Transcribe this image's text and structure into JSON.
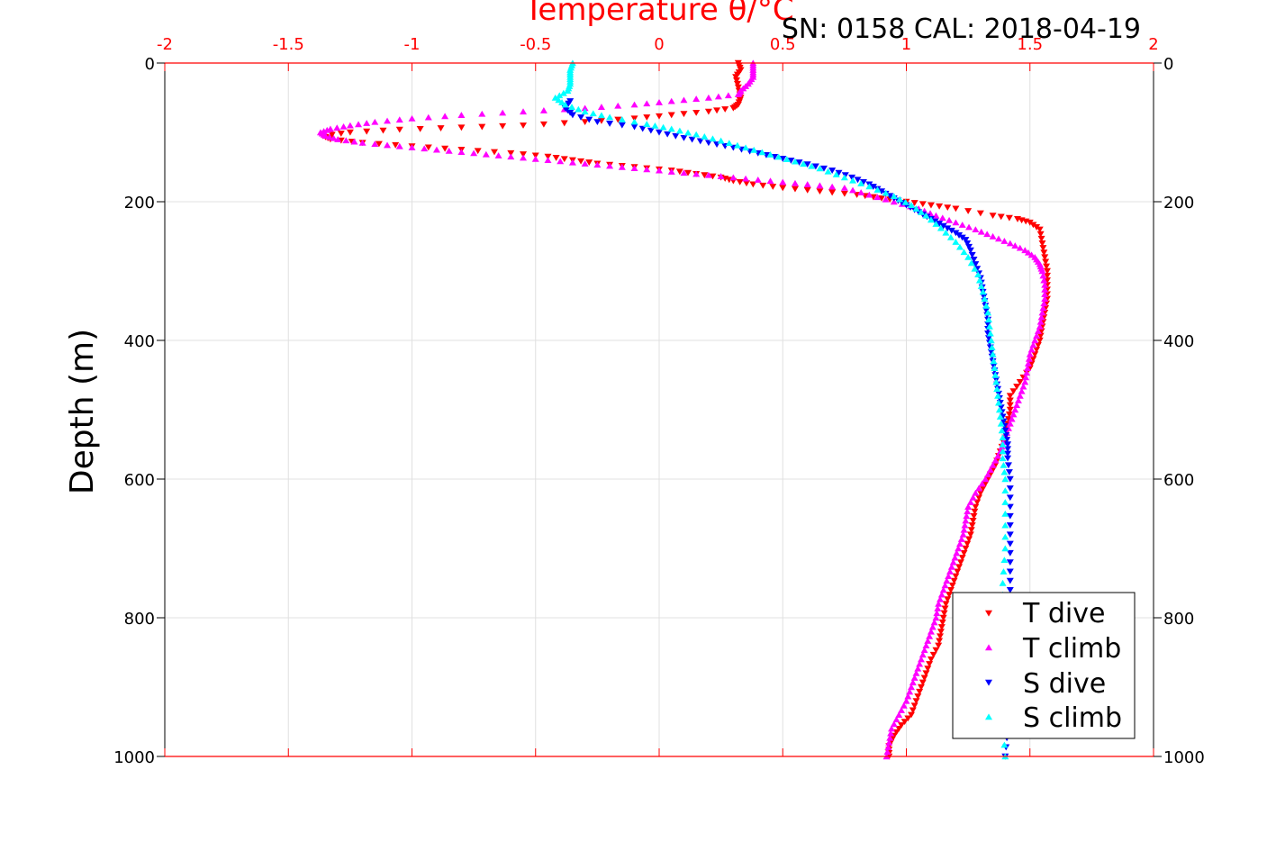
{
  "colors": {
    "t_dive": "#ff0000",
    "t_climb": "#ff00ff",
    "s_dive": "#0000ff",
    "s_climb": "#00ffff",
    "axis_top": "#ff0000",
    "grid": "#e0e0e0"
  },
  "chart_data": {
    "type": "scatter",
    "title": "SN: 0158  CAL: 2018-04-19",
    "xlabel": "Temperature θ/°C",
    "ylabel": "Depth (m)",
    "xlim": [
      -2,
      2
    ],
    "ylim": [
      0,
      1000
    ],
    "y_inverted": true,
    "grid": true,
    "legend_position": "bottom-right",
    "x_ticks": [
      "-2",
      "-1.5",
      "-1",
      "-0.5",
      "0",
      "0.5",
      "1",
      "1.5",
      "2"
    ],
    "y_ticks": [
      "0",
      "200",
      "400",
      "600",
      "800",
      "1000"
    ],
    "series": [
      {
        "name": "T dive",
        "marker": "triangle-down",
        "points": [
          [
            0.32,
            0
          ],
          [
            0.33,
            10
          ],
          [
            0.31,
            20
          ],
          [
            0.32,
            35
          ],
          [
            0.33,
            50
          ],
          [
            0.32,
            60
          ],
          [
            0.3,
            65
          ],
          [
            0.2,
            70
          ],
          [
            0.05,
            75
          ],
          [
            -0.1,
            80
          ],
          [
            -0.3,
            85
          ],
          [
            -0.55,
            90
          ],
          [
            -0.8,
            93
          ],
          [
            -1.05,
            96
          ],
          [
            -1.25,
            100
          ],
          [
            -1.36,
            105
          ],
          [
            -1.33,
            110
          ],
          [
            -1.2,
            115
          ],
          [
            -1.0,
            120
          ],
          [
            -0.8,
            125
          ],
          [
            -0.6,
            130
          ],
          [
            -0.45,
            135
          ],
          [
            -0.35,
            140
          ],
          [
            -0.25,
            145
          ],
          [
            -0.1,
            150
          ],
          [
            0.05,
            155
          ],
          [
            0.15,
            160
          ],
          [
            0.25,
            165
          ],
          [
            0.3,
            170
          ],
          [
            0.38,
            175
          ],
          [
            0.5,
            180
          ],
          [
            0.65,
            185
          ],
          [
            0.8,
            190
          ],
          [
            0.9,
            195
          ],
          [
            1.0,
            200
          ],
          [
            1.1,
            205
          ],
          [
            1.2,
            210
          ],
          [
            1.35,
            220
          ],
          [
            1.45,
            225
          ],
          [
            1.5,
            230
          ],
          [
            1.54,
            240
          ],
          [
            1.55,
            260
          ],
          [
            1.56,
            280
          ],
          [
            1.57,
            300
          ],
          [
            1.57,
            320
          ],
          [
            1.57,
            340
          ],
          [
            1.56,
            360
          ],
          [
            1.55,
            380
          ],
          [
            1.54,
            400
          ],
          [
            1.52,
            420
          ],
          [
            1.5,
            440
          ],
          [
            1.46,
            460
          ],
          [
            1.42,
            480
          ],
          [
            1.42,
            500
          ],
          [
            1.41,
            520
          ],
          [
            1.4,
            540
          ],
          [
            1.38,
            560
          ],
          [
            1.36,
            580
          ],
          [
            1.33,
            600
          ],
          [
            1.3,
            620
          ],
          [
            1.28,
            640
          ],
          [
            1.27,
            660
          ],
          [
            1.26,
            680
          ],
          [
            1.24,
            700
          ],
          [
            1.22,
            720
          ],
          [
            1.2,
            740
          ],
          [
            1.18,
            760
          ],
          [
            1.16,
            780
          ],
          [
            1.15,
            800
          ],
          [
            1.14,
            820
          ],
          [
            1.13,
            840
          ],
          [
            1.1,
            860
          ],
          [
            1.08,
            880
          ],
          [
            1.06,
            900
          ],
          [
            1.04,
            920
          ],
          [
            1.02,
            940
          ],
          [
            0.98,
            955
          ],
          [
            0.95,
            970
          ],
          [
            0.93,
            985
          ],
          [
            0.93,
            1000
          ]
        ]
      },
      {
        "name": "T climb",
        "marker": "triangle-up",
        "points": [
          [
            0.38,
            0
          ],
          [
            0.38,
            10
          ],
          [
            0.38,
            20
          ],
          [
            0.36,
            30
          ],
          [
            0.33,
            40
          ],
          [
            0.32,
            45
          ],
          [
            0.2,
            50
          ],
          [
            0.05,
            55
          ],
          [
            -0.1,
            60
          ],
          [
            -0.3,
            65
          ],
          [
            -0.55,
            70
          ],
          [
            -0.8,
            75
          ],
          [
            -1.0,
            80
          ],
          [
            -1.15,
            85
          ],
          [
            -1.25,
            90
          ],
          [
            -1.33,
            95
          ],
          [
            -1.37,
            100
          ],
          [
            -1.35,
            105
          ],
          [
            -1.3,
            110
          ],
          [
            -1.2,
            115
          ],
          [
            -1.05,
            120
          ],
          [
            -0.9,
            125
          ],
          [
            -0.75,
            130
          ],
          [
            -0.6,
            135
          ],
          [
            -0.45,
            140
          ],
          [
            -0.3,
            145
          ],
          [
            -0.15,
            150
          ],
          [
            0.0,
            155
          ],
          [
            0.15,
            160
          ],
          [
            0.3,
            165
          ],
          [
            0.45,
            170
          ],
          [
            0.6,
            175
          ],
          [
            0.75,
            180
          ],
          [
            0.85,
            190
          ],
          [
            0.95,
            200
          ],
          [
            1.05,
            210
          ],
          [
            1.12,
            220
          ],
          [
            1.2,
            230
          ],
          [
            1.28,
            240
          ],
          [
            1.35,
            250
          ],
          [
            1.42,
            260
          ],
          [
            1.48,
            270
          ],
          [
            1.52,
            280
          ],
          [
            1.54,
            290
          ],
          [
            1.55,
            300
          ],
          [
            1.56,
            320
          ],
          [
            1.56,
            340
          ],
          [
            1.55,
            360
          ],
          [
            1.54,
            380
          ],
          [
            1.52,
            400
          ],
          [
            1.5,
            420
          ],
          [
            1.49,
            440
          ],
          [
            1.48,
            460
          ],
          [
            1.46,
            480
          ],
          [
            1.44,
            500
          ],
          [
            1.42,
            520
          ],
          [
            1.4,
            540
          ],
          [
            1.38,
            560
          ],
          [
            1.35,
            580
          ],
          [
            1.32,
            600
          ],
          [
            1.28,
            620
          ],
          [
            1.25,
            640
          ],
          [
            1.24,
            660
          ],
          [
            1.23,
            680
          ],
          [
            1.21,
            700
          ],
          [
            1.19,
            720
          ],
          [
            1.17,
            740
          ],
          [
            1.15,
            760
          ],
          [
            1.13,
            780
          ],
          [
            1.12,
            800
          ],
          [
            1.1,
            820
          ],
          [
            1.08,
            840
          ],
          [
            1.06,
            860
          ],
          [
            1.04,
            880
          ],
          [
            1.02,
            900
          ],
          [
            1.0,
            920
          ],
          [
            0.97,
            940
          ],
          [
            0.94,
            960
          ],
          [
            0.93,
            980
          ],
          [
            0.92,
            1000
          ]
        ]
      },
      {
        "name": "S dive",
        "marker": "triangle-down",
        "points": [
          [
            -0.36,
            55
          ],
          [
            -0.38,
            65
          ],
          [
            -0.35,
            75
          ],
          [
            -0.25,
            85
          ],
          [
            -0.1,
            92
          ],
          [
            0.0,
            100
          ],
          [
            0.1,
            108
          ],
          [
            0.2,
            115
          ],
          [
            0.3,
            122
          ],
          [
            0.4,
            130
          ],
          [
            0.5,
            138
          ],
          [
            0.6,
            146
          ],
          [
            0.7,
            155
          ],
          [
            0.78,
            165
          ],
          [
            0.85,
            175
          ],
          [
            0.9,
            185
          ],
          [
            0.95,
            195
          ],
          [
            1.0,
            205
          ],
          [
            1.05,
            215
          ],
          [
            1.1,
            225
          ],
          [
            1.15,
            235
          ],
          [
            1.2,
            245
          ],
          [
            1.24,
            255
          ],
          [
            1.26,
            270
          ],
          [
            1.28,
            290
          ],
          [
            1.3,
            310
          ],
          [
            1.31,
            330
          ],
          [
            1.32,
            350
          ],
          [
            1.33,
            370
          ],
          [
            1.33,
            390
          ],
          [
            1.34,
            410
          ],
          [
            1.35,
            430
          ],
          [
            1.36,
            450
          ],
          [
            1.37,
            470
          ],
          [
            1.38,
            490
          ],
          [
            1.39,
            510
          ],
          [
            1.4,
            530
          ],
          [
            1.41,
            550
          ],
          [
            1.41,
            570
          ],
          [
            1.42,
            600
          ],
          [
            1.42,
            640
          ],
          [
            1.42,
            680
          ],
          [
            1.42,
            720
          ],
          [
            1.42,
            760
          ],
          [
            1.42,
            800
          ],
          [
            1.42,
            840
          ],
          [
            1.41,
            880
          ],
          [
            1.41,
            920
          ],
          [
            1.41,
            960
          ],
          [
            1.4,
            1000
          ]
        ]
      },
      {
        "name": "S climb",
        "marker": "triangle-up",
        "points": [
          [
            -0.35,
            0
          ],
          [
            -0.36,
            10
          ],
          [
            -0.36,
            20
          ],
          [
            -0.36,
            30
          ],
          [
            -0.37,
            40
          ],
          [
            -0.42,
            50
          ],
          [
            -0.38,
            60
          ],
          [
            -0.3,
            70
          ],
          [
            -0.2,
            78
          ],
          [
            -0.05,
            88
          ],
          [
            0.05,
            95
          ],
          [
            0.15,
            103
          ],
          [
            0.25,
            112
          ],
          [
            0.35,
            122
          ],
          [
            0.45,
            132
          ],
          [
            0.55,
            142
          ],
          [
            0.65,
            152
          ],
          [
            0.75,
            165
          ],
          [
            0.85,
            178
          ],
          [
            0.95,
            192
          ],
          [
            1.02,
            205
          ],
          [
            1.08,
            220
          ],
          [
            1.14,
            238
          ],
          [
            1.2,
            258
          ],
          [
            1.25,
            280
          ],
          [
            1.29,
            305
          ],
          [
            1.31,
            330
          ],
          [
            1.33,
            360
          ],
          [
            1.34,
            390
          ],
          [
            1.35,
            420
          ],
          [
            1.36,
            450
          ],
          [
            1.37,
            480
          ],
          [
            1.38,
            510
          ],
          [
            1.39,
            540
          ],
          [
            1.39,
            570
          ],
          [
            1.4,
            600
          ],
          [
            1.4,
            650
          ],
          [
            1.4,
            700
          ],
          [
            1.39,
            750
          ],
          [
            1.39,
            800
          ],
          [
            1.39,
            850
          ],
          [
            1.39,
            900
          ],
          [
            1.39,
            950
          ],
          [
            1.4,
            1000
          ]
        ]
      }
    ]
  }
}
